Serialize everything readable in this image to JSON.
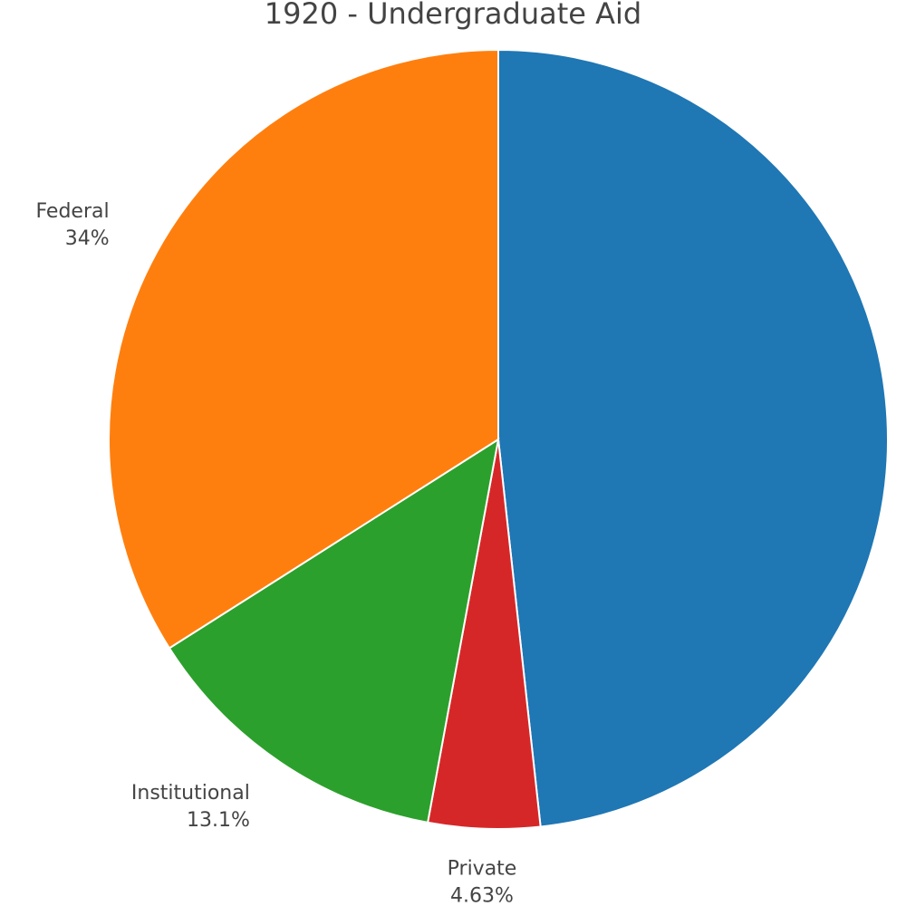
{
  "chart_data": {
    "type": "pie",
    "title": "1920 - Undergraduate Aid",
    "direction": "clockwise",
    "start_angle": "top",
    "slices": [
      {
        "label": "",
        "percent_label": "48.3%",
        "value": 48.27,
        "color": "#1f77b4"
      },
      {
        "label": "Private",
        "percent_label": "4.63%",
        "value": 4.63,
        "color": "#d62728"
      },
      {
        "label": "Institutional",
        "percent_label": "13.1%",
        "value": 13.1,
        "color": "#2ca02c"
      },
      {
        "label": "Federal",
        "percent_label": "34%",
        "value": 34.0,
        "color": "#ff7f0e"
      }
    ]
  }
}
